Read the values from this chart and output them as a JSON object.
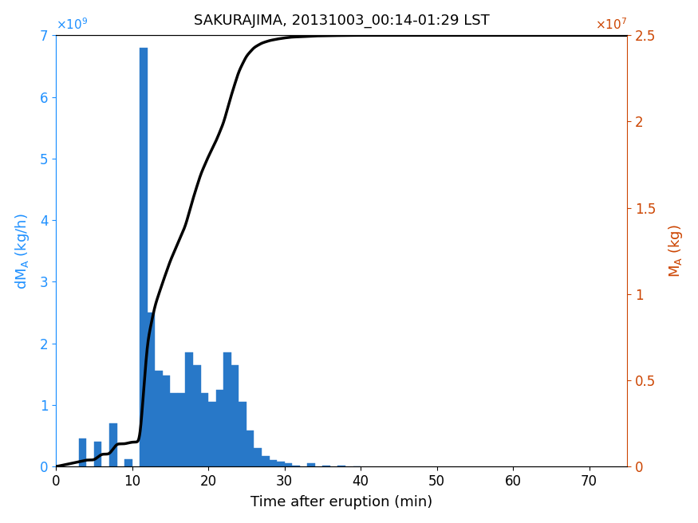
{
  "title": "SAKURAJIMA, 20131003_00:14-01:29 LST",
  "xlabel": "Time after eruption (min)",
  "ylabel_left": "dM_A  (kg/h)",
  "ylabel_right": "M_A  (kg)",
  "bar_color": "#2878C8",
  "line_color": "#000000",
  "left_axis_color": "#1E90FF",
  "right_axis_color": "#CC4400",
  "xlim": [
    0,
    75
  ],
  "ylim_left": [
    0,
    7000000000.0
  ],
  "ylim_right": [
    0,
    25000000.0
  ],
  "bar_left_edges": [
    3,
    4,
    5,
    6,
    7,
    8,
    9,
    10,
    11,
    12,
    13,
    14,
    15,
    16,
    17,
    18,
    19,
    20,
    21,
    22,
    23,
    24,
    25,
    26,
    27,
    28,
    29,
    30,
    31,
    33,
    35,
    37,
    39
  ],
  "bar_heights": [
    450000000.0,
    0,
    400000000.0,
    0,
    700000000.0,
    0,
    120000000.0,
    0,
    6800000000.0,
    2500000000.0,
    1550000000.0,
    1480000000.0,
    1200000000.0,
    1200000000.0,
    1850000000.0,
    1650000000.0,
    1200000000.0,
    1050000000.0,
    1250000000.0,
    1850000000.0,
    1650000000.0,
    1050000000.0,
    580000000.0,
    300000000.0,
    170000000.0,
    105000000.0,
    80000000.0,
    60000000.0,
    15000000.0,
    60000000.0,
    20000000.0,
    15000000.0,
    8000000.0
  ],
  "xticks": [
    0,
    10,
    20,
    30,
    40,
    50,
    60,
    70
  ],
  "yticks_left": [
    0,
    1000000000.0,
    2000000000.0,
    3000000000.0,
    4000000000.0,
    5000000000.0,
    6000000000.0,
    7000000000.0
  ],
  "ytick_left_labels": [
    "0",
    "1",
    "2",
    "3",
    "4",
    "5",
    "6",
    "7"
  ],
  "yticks_right": [
    0,
    5000000.0,
    10000000.0,
    15000000.0,
    20000000.0,
    25000000.0
  ],
  "ytick_right_labels": [
    "0",
    "0.5",
    "1",
    "1.5",
    "2",
    "2.5"
  ]
}
